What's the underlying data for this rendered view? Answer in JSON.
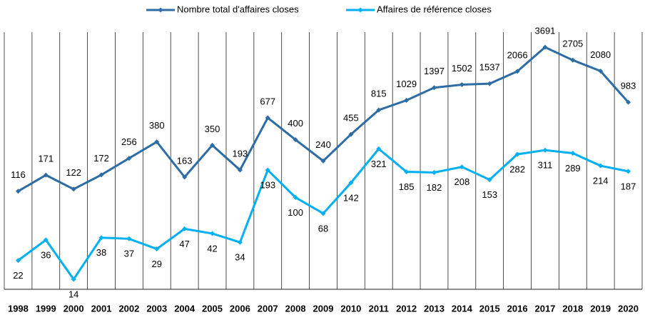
{
  "chart_data": {
    "type": "line",
    "categories": [
      "1998",
      "1999",
      "2000",
      "2001",
      "2002",
      "2003",
      "2004",
      "2005",
      "2006",
      "2007",
      "2008",
      "2009",
      "2010",
      "2011",
      "2012",
      "2013",
      "2014",
      "2015",
      "2016",
      "2017",
      "2018",
      "2019",
      "2020"
    ],
    "series": [
      {
        "name": "Nombre total d'affaires closes",
        "color": "#2e6ca4",
        "values": [
          116,
          171,
          122,
          172,
          256,
          380,
          163,
          350,
          193,
          677,
          400,
          240,
          455,
          815,
          1029,
          1397,
          1502,
          1537,
          2066,
          3691,
          2705,
          2080,
          983
        ]
      },
      {
        "name": "Affaires de référence closes",
        "color": "#00b0f0",
        "values": [
          22,
          36,
          14,
          38,
          37,
          29,
          47,
          42,
          34,
          193,
          100,
          68,
          142,
          321,
          185,
          182,
          208,
          153,
          282,
          311,
          289,
          214,
          187
        ]
      }
    ],
    "ylim": [
      11,
      5300
    ],
    "log_scale": true,
    "legend": "top"
  }
}
